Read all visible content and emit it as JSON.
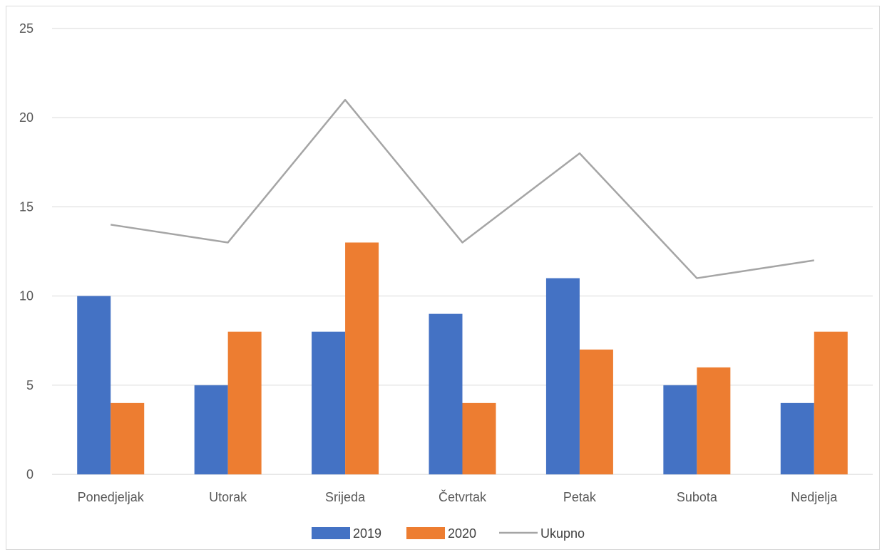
{
  "chart_data": {
    "type": "bar",
    "categories": [
      "Ponedjeljak",
      "Utorak",
      "Srijeda",
      "Četvrtak",
      "Petak",
      "Subota",
      "Nedjelja"
    ],
    "series": [
      {
        "name": "2019",
        "kind": "bar",
        "color": "#4472C4",
        "values": [
          10,
          5,
          8,
          9,
          11,
          5,
          4
        ]
      },
      {
        "name": "2020",
        "kind": "bar",
        "color": "#ED7D31",
        "values": [
          4,
          8,
          13,
          4,
          7,
          6,
          8
        ]
      },
      {
        "name": "Ukupno",
        "kind": "line",
        "color": "#A5A5A5",
        "values": [
          14,
          13,
          21,
          13,
          18,
          11,
          12
        ]
      }
    ],
    "title": "",
    "xlabel": "",
    "ylabel": "",
    "ylim": [
      0,
      25
    ],
    "yticks": [
      "0",
      "5",
      "10",
      "15",
      "20",
      "25"
    ],
    "grid": true,
    "legend_position": "bottom"
  }
}
